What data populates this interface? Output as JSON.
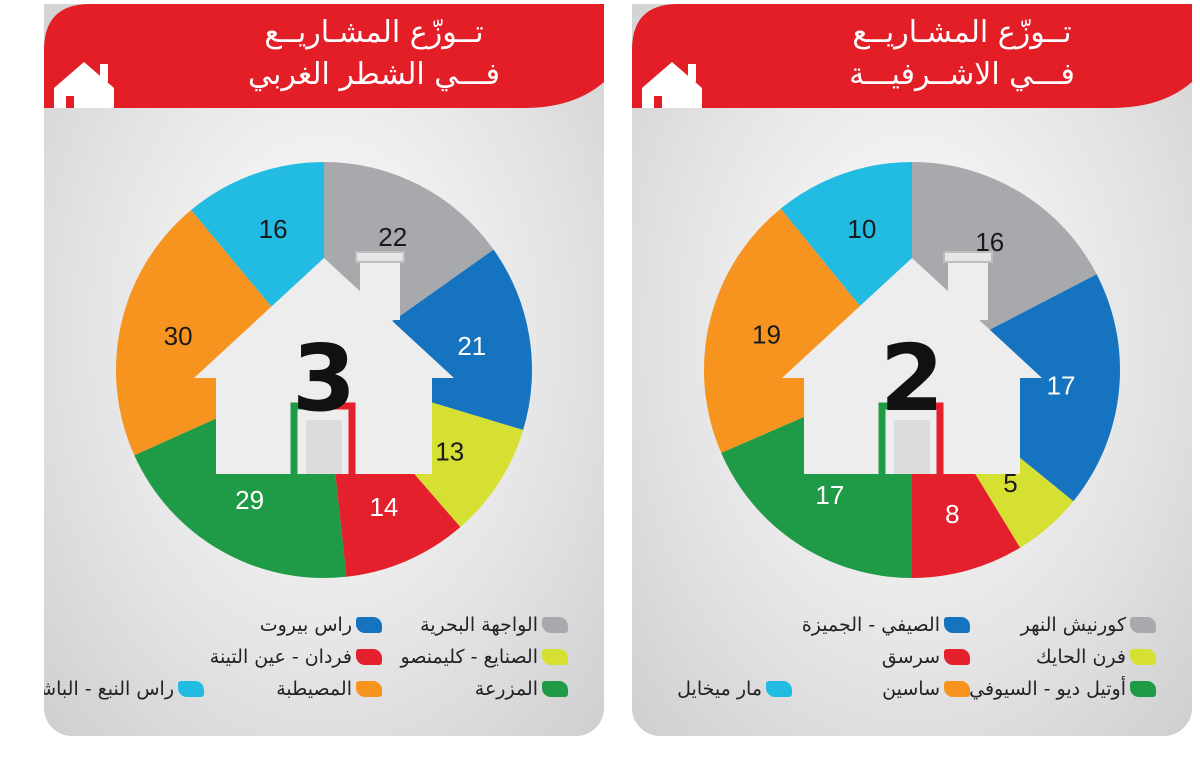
{
  "charts_meta": {
    "west_title_line1": "تــوزّع المشـاريــع",
    "west_title_line2": "فـــي الشطر الغربي",
    "east_title_line1": "تــوزّع المشـاريــع",
    "east_title_line2": "فـــي الاشــرفيـــة",
    "west_center": "3",
    "east_center": "2"
  },
  "chart_data": [
    {
      "type": "pie",
      "title": "تــوزّع المشـاريــع فـــي الشطر الغربي",
      "center_label": "3",
      "slices": [
        {
          "label": "الواجهة البحرية",
          "value": 22,
          "color": "#a7a9ac"
        },
        {
          "label": "راس بيروت",
          "value": 21,
          "color": "#1673c0"
        },
        {
          "label": "الصنايع - كليمنصو",
          "value": 13,
          "color": "#d6e033"
        },
        {
          "label": "فردان - عين التينة",
          "value": 14,
          "color": "#e3202c"
        },
        {
          "label": "المزرعة",
          "value": 29,
          "color": "#1f9a46"
        },
        {
          "label": "المصيطبة",
          "value": 30,
          "color": "#f6941f"
        },
        {
          "label": "راس النبع - الباشورة",
          "value": 16,
          "color": "#22bbe2"
        }
      ],
      "legend_rows": [
        [
          0,
          1
        ],
        [
          2,
          3
        ],
        [
          4,
          5,
          6
        ]
      ]
    },
    {
      "type": "pie",
      "title": "تــوزّع المشـاريــع فـــي الاشــرفيـــة",
      "center_label": "2",
      "slices": [
        {
          "label": "كورنيش النهر",
          "value": 16,
          "color": "#a7a9ac"
        },
        {
          "label": "الصيفي - الجميزة",
          "value": 17,
          "color": "#1673c0"
        },
        {
          "label": "فرن الحايك",
          "value": 5,
          "color": "#d6e033"
        },
        {
          "label": "سرسق",
          "value": 8,
          "color": "#e3202c"
        },
        {
          "label": "أوتيل ديو - السيوفي",
          "value": 17,
          "color": "#1f9a46"
        },
        {
          "label": "ساسين",
          "value": 19,
          "color": "#f6941f"
        },
        {
          "label": "مار ميخايل",
          "value": 10,
          "color": "#22bbe2"
        }
      ],
      "legend_rows": [
        [
          0,
          1
        ],
        [
          2,
          3
        ],
        [
          4,
          5,
          6
        ]
      ]
    }
  ]
}
